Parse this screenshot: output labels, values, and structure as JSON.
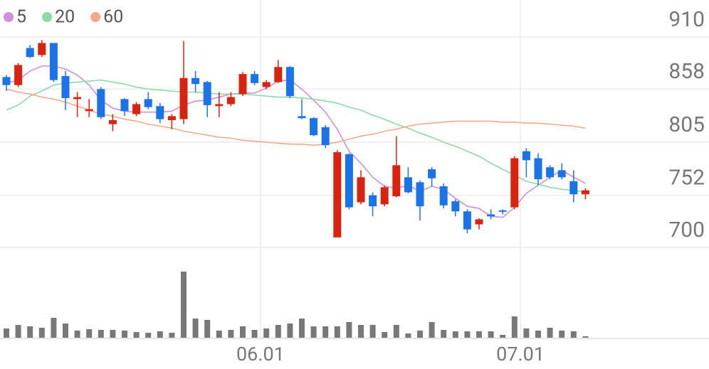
{
  "chart_data": {
    "type": "candlestick",
    "categories": [
      null,
      null,
      null,
      null,
      null,
      null,
      null,
      null,
      null,
      null,
      null,
      null,
      null,
      null,
      null,
      null,
      null,
      null,
      null,
      null,
      null,
      null,
      "06.01",
      null,
      null,
      null,
      null,
      null,
      null,
      null,
      null,
      null,
      null,
      null,
      null,
      null,
      null,
      null,
      null,
      null,
      null,
      null,
      null,
      null,
      "07.01",
      null,
      null,
      null,
      null,
      null
    ],
    "open": [
      870,
      862,
      899,
      892,
      904,
      871,
      848,
      836,
      858,
      823,
      848,
      833,
      848,
      841,
      827,
      828,
      869,
      865,
      841,
      843,
      853,
      873,
      860,
      865,
      880,
      831,
      829,
      820,
      710,
      793,
      745,
      752,
      743,
      751,
      770,
      765,
      778,
      761,
      746,
      736,
      723,
      733,
      737,
      740,
      796,
      789,
      780,
      777,
      766,
      753
    ],
    "high": [
      872,
      884,
      902,
      907,
      904,
      876,
      855,
      848,
      860,
      833,
      849,
      845,
      855,
      844,
      833,
      906,
      876,
      866,
      855,
      855,
      875,
      876,
      867,
      887,
      881,
      848,
      830,
      822,
      797,
      794,
      777,
      755,
      762,
      811,
      780,
      767,
      780,
      764,
      748,
      738,
      729,
      738,
      738,
      791,
      799,
      794,
      782,
      784,
      777,
      759
    ],
    "low": [
      856,
      860,
      889,
      890,
      865,
      837,
      830,
      830,
      828,
      816,
      831,
      831,
      838,
      824,
      818,
      823,
      855,
      830,
      830,
      841,
      851,
      862,
      858,
      864,
      849,
      828,
      811,
      799,
      710,
      738,
      743,
      731,
      741,
      750,
      754,
      727,
      761,
      739,
      731,
      714,
      718,
      728,
      733,
      738,
      770,
      762,
      768,
      768,
      745,
      748
    ],
    "close": [
      862,
      882,
      890,
      904,
      867,
      849,
      850,
      838,
      830,
      827,
      836,
      843,
      840,
      828,
      831,
      869,
      863,
      842,
      843,
      850,
      873,
      864,
      865,
      880,
      851,
      829,
      812,
      802,
      795,
      740,
      770,
      741,
      760,
      782,
      755,
      741,
      769,
      742,
      736,
      718,
      728,
      731,
      736,
      789,
      787,
      768,
      770,
      770,
      753,
      757
    ],
    "up_color": "#d9230f",
    "down_color": "#1a73e8",
    "series": [
      {
        "name": "5",
        "color": "#cf8fe3",
        "values": [
          864,
          867,
          876,
          881,
          881,
          878,
          872,
          862,
          847,
          839,
          836,
          835,
          835,
          835,
          836,
          842,
          846,
          847,
          850,
          853,
          854,
          854,
          859,
          866,
          867,
          858,
          847,
          835,
          818,
          796,
          784,
          770,
          761,
          759,
          762,
          756,
          761,
          758,
          749,
          741,
          739,
          731,
          730,
          740,
          754,
          762,
          770,
          777,
          770,
          764
        ]
      },
      {
        "name": "20",
        "color": "#8fd9a8",
        "values": [
          837,
          842,
          851,
          856,
          862,
          864,
          865,
          866,
          867,
          865,
          863,
          860,
          858,
          857,
          856,
          855,
          855,
          854,
          853,
          853,
          853,
          852,
          851,
          850,
          850,
          849,
          848,
          846,
          844,
          840,
          837,
          832,
          828,
          823,
          819,
          814,
          810,
          805,
          801,
          796,
          791,
          784,
          778,
          772,
          766,
          763,
          760,
          758,
          757,
          755
        ]
      },
      {
        "name": "60",
        "color": "#f3a98a",
        "values": [
          858,
          855,
          853,
          850,
          848,
          845,
          841,
          837,
          833,
          831,
          828,
          826,
          823,
          821,
          819,
          816,
          814,
          812,
          810,
          809,
          807,
          806,
          805,
          804,
          803,
          803,
          802,
          803,
          805,
          808,
          811,
          813,
          816,
          818,
          821,
          823,
          824,
          825,
          826,
          826,
          826,
          826,
          825,
          825,
          824,
          824,
          823,
          822,
          821,
          819
        ]
      }
    ],
    "volume": {
      "color": "#787878",
      "values": [
        13,
        18,
        16,
        14,
        28,
        20,
        10,
        12,
        11,
        11,
        10,
        8,
        7,
        9,
        7,
        93,
        27,
        25,
        10,
        11,
        16,
        11,
        13,
        18,
        20,
        27,
        16,
        16,
        16,
        22,
        18,
        18,
        8,
        18,
        6,
        10,
        22,
        11,
        9,
        9,
        9,
        9,
        4,
        30,
        13,
        10,
        14,
        10,
        9,
        2
      ]
    },
    "volume_lim": [
      0,
      100
    ],
    "ylim": [
      700,
      910
    ],
    "yticks": [
      910,
      858,
      805,
      752,
      700
    ],
    "grid": true
  }
}
